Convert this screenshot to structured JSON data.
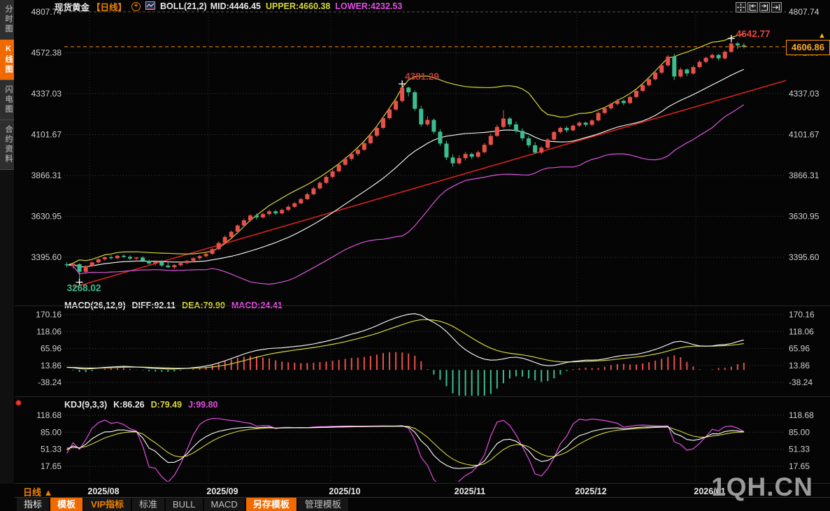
{
  "header": {
    "symbol": "现货黄金",
    "period_tag": "【日线】",
    "indicator_text": "BOLL(21,2)",
    "mid_text": "MID:4446.45",
    "upper_text": "UPPER:4660.38",
    "lower_text": "LOWER:4232.53"
  },
  "sidebar": {
    "items": [
      {
        "label": "分时图",
        "active": false
      },
      {
        "label": "K线图",
        "active": true
      },
      {
        "label": "闪电图",
        "active": false
      },
      {
        "label": "合约资料",
        "active": false
      }
    ]
  },
  "tool_icons": [
    "crosshair",
    "compress-left",
    "compress-right",
    "pan-right"
  ],
  "macd_header": {
    "title": "MACD(26,12,9)",
    "diff": "DIFF:92.11",
    "dea": "DEA:79.90",
    "macd": "MACD:24.41"
  },
  "kdj_header": {
    "title": "KDJ(9,3,3)",
    "k": "K:86.26",
    "d": "D:79.49",
    "j": "J:99.80"
  },
  "annotations": {
    "high": "4642.77",
    "peak": "4381.29",
    "low": "3268.02"
  },
  "price_box": {
    "value": "4606.86"
  },
  "axis_labels": {
    "main": [
      "4807.74",
      "4572.38",
      "4337.03",
      "4101.67",
      "3866.31",
      "3630.95",
      "3395.60"
    ],
    "macd": [
      "170.16",
      "118.06",
      "65.96",
      "13.86",
      "-38.24"
    ],
    "kdj": [
      "118.68",
      "85.00",
      "51.33",
      "17.65"
    ]
  },
  "period_selector": {
    "label": "日线",
    "arrow": "▲"
  },
  "date_axis": [
    "2025/08",
    "2025/09",
    "2025/10",
    "2025/11",
    "2025/12",
    "2026/01"
  ],
  "bottom_toolbar": {
    "items": [
      {
        "label": "指标",
        "style": "plain"
      },
      {
        "label": "模板",
        "style": "active"
      },
      {
        "label": "VIP指标",
        "style": "vip"
      },
      {
        "label": "标准",
        "style": ""
      },
      {
        "label": "BULL",
        "style": ""
      },
      {
        "label": "MACD",
        "style": ""
      },
      {
        "label": "另存模板",
        "style": "active"
      },
      {
        "label": "管理模板",
        "style": ""
      }
    ]
  },
  "watermark": "1QH.CN",
  "colors": {
    "accent_orange": "#f06a00",
    "price_orange": "#ff9100",
    "up": "#e8504a",
    "down": "#3bbd8e",
    "boll_upper": "#d6d63a",
    "boll_mid": "#ffffff",
    "boll_lower": "#dd55dd",
    "trend_red": "#ee2222",
    "diff_line": "#ffffff",
    "dea_line": "#d6d63a",
    "macd_line": "#e14fe1",
    "ann_high": "#e84040",
    "ann_peak": "#c23b3b",
    "ann_low": "#3dbd8e"
  },
  "chart_data": {
    "type": "candlestick",
    "symbol": "现货黄金",
    "period": "日线",
    "x_month_labels": [
      "2025/08",
      "2025/09",
      "2025/10",
      "2025/11",
      "2025/12",
      "2026/01"
    ],
    "price_axis_ticks": [
      4807.74,
      4572.38,
      4337.03,
      4101.67,
      3866.31,
      3630.95,
      3395.6
    ],
    "last_price": 4606.86,
    "high_annotation": 4642.77,
    "peak_annotation": 4381.29,
    "low_annotation": 3268.02,
    "boll": {
      "period": 21,
      "mult": 2,
      "mid": 4446.45,
      "upper": 4660.38,
      "lower": 4232.53
    },
    "trendline": {
      "from_index": 1,
      "from_price": 3222,
      "to_index": 120,
      "to_price": 4480
    },
    "candles_ohlc": [
      [
        3355,
        3368,
        3338,
        3350
      ],
      [
        3350,
        3362,
        3330,
        3358
      ],
      [
        3356,
        3360,
        3268.02,
        3312
      ],
      [
        3312,
        3350,
        3300,
        3345
      ],
      [
        3345,
        3372,
        3340,
        3366
      ],
      [
        3366,
        3390,
        3360,
        3384
      ],
      [
        3384,
        3400,
        3376,
        3396
      ],
      [
        3396,
        3408,
        3382,
        3390
      ],
      [
        3390,
        3410,
        3385,
        3404
      ],
      [
        3404,
        3412,
        3390,
        3398
      ],
      [
        3398,
        3406,
        3380,
        3388
      ],
      [
        3388,
        3398,
        3372,
        3394
      ],
      [
        3394,
        3402,
        3368,
        3375
      ],
      [
        3375,
        3382,
        3352,
        3360
      ],
      [
        3360,
        3378,
        3348,
        3370
      ],
      [
        3370,
        3380,
        3340,
        3348
      ],
      [
        3348,
        3366,
        3334,
        3338
      ],
      [
        3338,
        3356,
        3328,
        3350
      ],
      [
        3350,
        3368,
        3342,
        3362
      ],
      [
        3362,
        3380,
        3355,
        3375
      ],
      [
        3375,
        3394,
        3368,
        3390
      ],
      [
        3390,
        3408,
        3382,
        3402
      ],
      [
        3402,
        3422,
        3395,
        3415
      ],
      [
        3415,
        3448,
        3410,
        3442
      ],
      [
        3442,
        3486,
        3436,
        3478
      ],
      [
        3478,
        3522,
        3470,
        3512
      ],
      [
        3512,
        3550,
        3505,
        3542
      ],
      [
        3542,
        3585,
        3536,
        3578
      ],
      [
        3578,
        3618,
        3570,
        3608
      ],
      [
        3608,
        3645,
        3600,
        3636
      ],
      [
        3636,
        3648,
        3612,
        3625
      ],
      [
        3625,
        3652,
        3618,
        3644
      ],
      [
        3644,
        3670,
        3636,
        3660
      ],
      [
        3660,
        3668,
        3638,
        3648
      ],
      [
        3648,
        3676,
        3642,
        3668
      ],
      [
        3668,
        3695,
        3660,
        3686
      ],
      [
        3686,
        3715,
        3680,
        3706
      ],
      [
        3706,
        3738,
        3700,
        3730
      ],
      [
        3730,
        3768,
        3724,
        3758
      ],
      [
        3758,
        3800,
        3752,
        3792
      ],
      [
        3792,
        3832,
        3786,
        3824
      ],
      [
        3824,
        3868,
        3818,
        3858
      ],
      [
        3858,
        3900,
        3850,
        3890
      ],
      [
        3890,
        3938,
        3884,
        3928
      ],
      [
        3928,
        3972,
        3922,
        3962
      ],
      [
        3962,
        4000,
        3950,
        3990
      ],
      [
        3990,
        4025,
        3978,
        4014
      ],
      [
        4014,
        4062,
        4008,
        4052
      ],
      [
        4052,
        4105,
        4046,
        4095
      ],
      [
        4095,
        4150,
        4088,
        4140
      ],
      [
        4140,
        4205,
        4134,
        4196
      ],
      [
        4196,
        4258,
        4190,
        4246
      ],
      [
        4246,
        4305,
        4238,
        4295
      ],
      [
        4295,
        4381.29,
        4286,
        4372
      ],
      [
        4372,
        4378,
        4322,
        4345
      ],
      [
        4345,
        4356,
        4238,
        4250
      ],
      [
        4250,
        4268,
        4148,
        4160
      ],
      [
        4160,
        4208,
        4150,
        4186
      ],
      [
        4186,
        4194,
        4106,
        4118
      ],
      [
        4118,
        4133,
        4036,
        4050
      ],
      [
        4050,
        4066,
        3956,
        3970
      ],
      [
        3970,
        3988,
        3916,
        3936
      ],
      [
        3936,
        3983,
        3928,
        3966
      ],
      [
        3966,
        4003,
        3953,
        3990
      ],
      [
        3990,
        3998,
        3960,
        3974
      ],
      [
        3974,
        4010,
        3966,
        4000
      ],
      [
        4000,
        4053,
        3994,
        4043
      ],
      [
        4043,
        4106,
        4038,
        4094
      ],
      [
        4094,
        4158,
        4088,
        4146
      ],
      [
        4146,
        4243,
        4138,
        4194
      ],
      [
        4194,
        4203,
        4146,
        4160
      ],
      [
        4160,
        4176,
        4110,
        4123
      ],
      [
        4123,
        4138,
        4066,
        4080
      ],
      [
        4080,
        4093,
        4026,
        4040
      ],
      [
        4040,
        4058,
        3990,
        3998
      ],
      [
        3998,
        4036,
        3988,
        4026
      ],
      [
        4026,
        4080,
        4020,
        4073
      ],
      [
        4073,
        4123,
        4066,
        4116
      ],
      [
        4116,
        4148,
        4108,
        4140
      ],
      [
        4140,
        4150,
        4113,
        4126
      ],
      [
        4126,
        4160,
        4120,
        4153
      ],
      [
        4153,
        4178,
        4144,
        4170
      ],
      [
        4170,
        4176,
        4146,
        4158
      ],
      [
        4158,
        4190,
        4150,
        4183
      ],
      [
        4183,
        4236,
        4178,
        4226
      ],
      [
        4226,
        4260,
        4218,
        4253
      ],
      [
        4253,
        4286,
        4244,
        4278
      ],
      [
        4278,
        4306,
        4268,
        4296
      ],
      [
        4296,
        4303,
        4270,
        4283
      ],
      [
        4283,
        4326,
        4276,
        4318
      ],
      [
        4318,
        4360,
        4310,
        4353
      ],
      [
        4353,
        4393,
        4346,
        4386
      ],
      [
        4386,
        4430,
        4378,
        4420
      ],
      [
        4420,
        4468,
        4413,
        4458
      ],
      [
        4458,
        4510,
        4450,
        4500
      ],
      [
        4500,
        4560,
        4493,
        4550
      ],
      [
        4550,
        4566,
        4416,
        4436
      ],
      [
        4436,
        4488,
        4428,
        4476
      ],
      [
        4476,
        4483,
        4438,
        4453
      ],
      [
        4453,
        4500,
        4446,
        4490
      ],
      [
        4490,
        4530,
        4484,
        4520
      ],
      [
        4520,
        4550,
        4513,
        4543
      ],
      [
        4543,
        4568,
        4536,
        4560
      ],
      [
        4560,
        4566,
        4528,
        4540
      ],
      [
        4540,
        4586,
        4534,
        4578
      ],
      [
        4578,
        4642.77,
        4572,
        4626
      ],
      [
        4626,
        4636,
        4594,
        4615
      ],
      [
        4615,
        4628,
        4598,
        4606.86
      ]
    ],
    "macd": {
      "params": "26,12,9",
      "diff": 92.11,
      "dea": 79.9,
      "bar": 24.41,
      "axis_ticks": [
        170.16,
        118.06,
        65.96,
        13.86,
        -38.24
      ],
      "diff_series": [
        8,
        7,
        4,
        3,
        4,
        6,
        8,
        9,
        10,
        11,
        10,
        9,
        8,
        6,
        5,
        4,
        3,
        3,
        4,
        5,
        7,
        9,
        12,
        16,
        22,
        28,
        35,
        42,
        49,
        55,
        60,
        63,
        66,
        67,
        68,
        70,
        72,
        74,
        77,
        80,
        84,
        88,
        93,
        98,
        104,
        110,
        115,
        121,
        128,
        136,
        145,
        153,
        160,
        166,
        171,
        173,
        168,
        156,
        146,
        134,
        118,
        98,
        78,
        62,
        50,
        40,
        33,
        30,
        31,
        34,
        38,
        39,
        36,
        30,
        23,
        16,
        13,
        14,
        18,
        23,
        26,
        28,
        30,
        30,
        31,
        34,
        38,
        42,
        45,
        46,
        48,
        52,
        57,
        63,
        70,
        78,
        86,
        88,
        84,
        78,
        74,
        73,
        74,
        77,
        78,
        81,
        87,
        92.11
      ]
    },
    "kdj": {
      "params": "9,3,3",
      "k": 86.26,
      "d": 79.49,
      "j": 99.8,
      "axis_ticks": [
        118.68,
        85.0,
        51.33,
        17.65
      ]
    }
  }
}
